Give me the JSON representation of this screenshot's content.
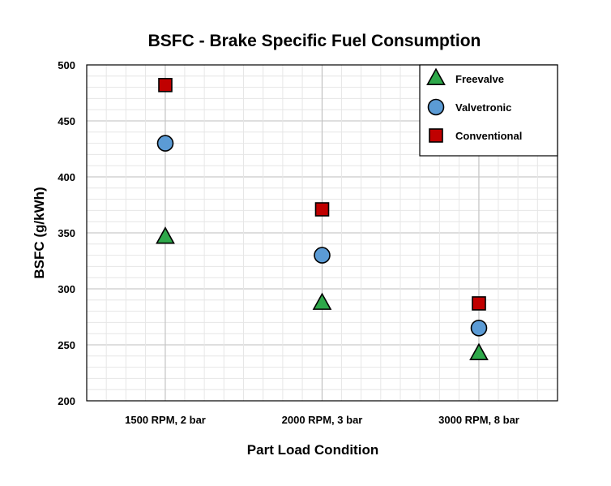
{
  "chart_data": {
    "type": "scatter",
    "title": "BSFC - Brake Specific Fuel Consumption",
    "xlabel": "Part Load Condition",
    "ylabel": "BSFC (g/kWh)",
    "categories": [
      "1500 RPM, 2 bar",
      "2000 RPM, 3 bar",
      "3000 RPM, 8 bar"
    ],
    "ylim": [
      200,
      500
    ],
    "yticks": [
      200,
      250,
      300,
      350,
      400,
      450,
      500
    ],
    "grid": true,
    "legend_position": "top-right",
    "series": [
      {
        "name": "Freevalve",
        "marker": "triangle",
        "color": "#2ea84a",
        "values": [
          346,
          287,
          242
        ]
      },
      {
        "name": "Valvetronic",
        "marker": "circle",
        "color": "#5b9bd5",
        "values": [
          430,
          330,
          265
        ]
      },
      {
        "name": "Conventional",
        "marker": "square",
        "color": "#c00000",
        "values": [
          482,
          371,
          287
        ]
      }
    ]
  }
}
